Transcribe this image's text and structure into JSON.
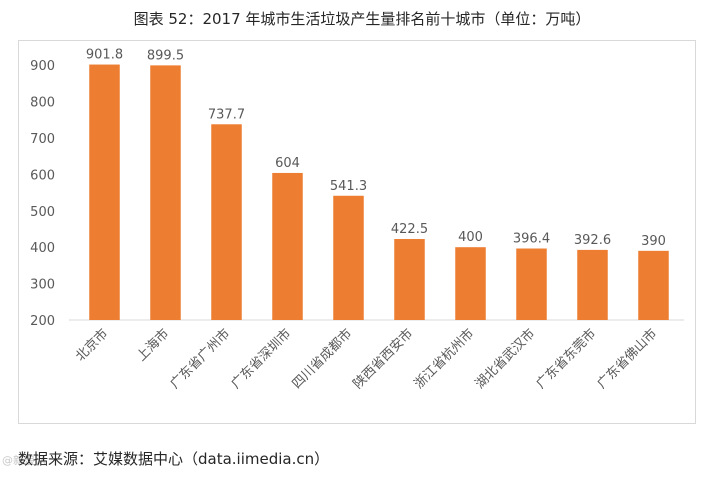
{
  "title": "图表 52：2017 年城市生活垃圾产生量排名前十城市（单位：万吨）",
  "source": "数据来源：艾媒数据中心（data.iimedia.cn）",
  "watermark": "@新浪网",
  "colors": {
    "bar": "#ED7D31",
    "axis_text": "#595959",
    "grid": "#D9D9D9",
    "label": "#595959"
  },
  "chart_data": {
    "type": "bar",
    "title": "",
    "xlabel": "",
    "ylabel": "",
    "ylim": [
      200,
      950
    ],
    "yticks": [
      200,
      300,
      400,
      500,
      600,
      700,
      800,
      900
    ],
    "grid": false,
    "categories": [
      "北京市",
      "上海市",
      "广东省广州市",
      "广东省深圳市",
      "四川省成都市",
      "陕西省西安市",
      "浙江省杭州市",
      "湖北省武汉市",
      "广东省东莞市",
      "广东省佛山市"
    ],
    "values": [
      901.8,
      899.5,
      737.7,
      604,
      541.3,
      422.5,
      400,
      396.4,
      392.6,
      390
    ],
    "data_labels": [
      "901.8",
      "899.5",
      "737.7",
      "604",
      "541.3",
      "422.5",
      "400",
      "396.4",
      "392.6",
      "390"
    ]
  }
}
